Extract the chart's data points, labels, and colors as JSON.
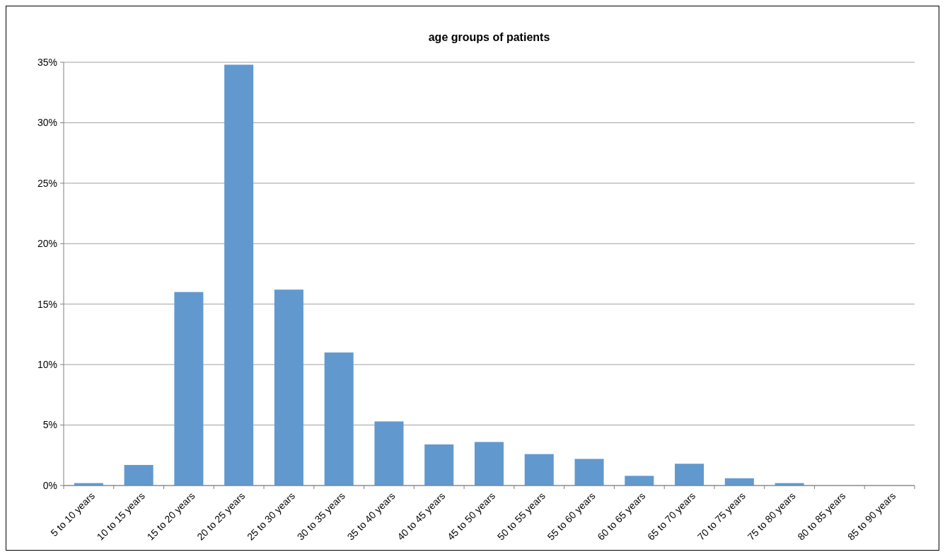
{
  "chart_data": {
    "type": "bar",
    "title": "age groups of patients",
    "categories": [
      "5 to 10 years",
      "10 to 15 years",
      "15 to 20 years",
      "20 to 25 years",
      "25 to 30 years",
      "30 to 35 years",
      "35 to 40 years",
      "40 to 45 years",
      "45 to 50 years",
      "50 to 55 years",
      "55 to 60 years",
      "60 to 65 years",
      "65 to 70 years",
      "70 to 75 years",
      "75 to 80 years",
      "80 to 85 years",
      "85 to 90 years"
    ],
    "values": [
      0.2,
      1.7,
      16.0,
      34.8,
      16.2,
      11.0,
      5.3,
      3.4,
      3.6,
      2.6,
      2.2,
      0.8,
      1.8,
      0.6,
      0.2,
      0,
      0
    ],
    "color": "#6199cf",
    "ylim": [
      0,
      35
    ],
    "yticks": [
      {
        "value": 0,
        "label": "0%"
      },
      {
        "value": 5,
        "label": "5%"
      },
      {
        "value": 10,
        "label": "10%"
      },
      {
        "value": 15,
        "label": "15%"
      },
      {
        "value": 20,
        "label": "20%"
      },
      {
        "value": 25,
        "label": "25%"
      },
      {
        "value": 30,
        "label": "30%"
      },
      {
        "value": 35,
        "label": "35%"
      }
    ],
    "grid": true
  }
}
